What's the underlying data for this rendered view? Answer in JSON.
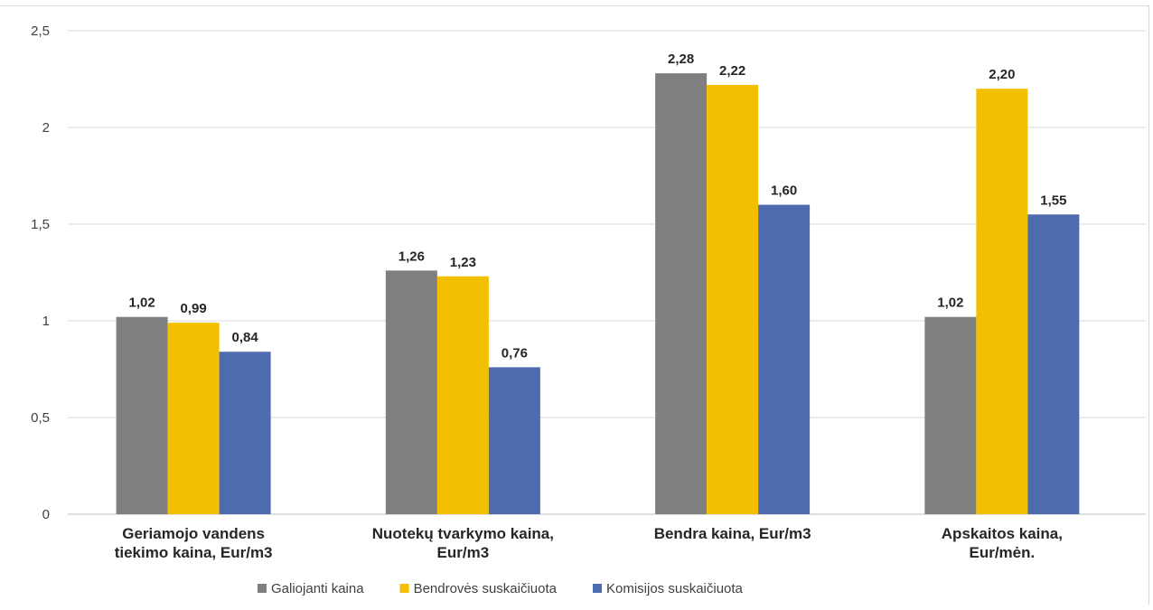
{
  "chart_data": {
    "type": "bar",
    "title": "",
    "xlabel": "",
    "ylabel": "",
    "ylim": [
      0,
      2.5
    ],
    "yticks": [
      "0",
      "0,5",
      "1",
      "1,5",
      "2",
      "2,5"
    ],
    "grid": true,
    "legend_position": "bottom",
    "categories": [
      [
        "Geriamojo vandens",
        "tiekimo kaina, Eur/m3"
      ],
      [
        "Nuotekų tvarkymo kaina,",
        "Eur/m3"
      ],
      [
        "Bendra kaina, Eur/m3"
      ],
      [
        "Apskaitos kaina,",
        "Eur/mėn."
      ]
    ],
    "series": [
      {
        "name": "Galiojanti kaina",
        "color": "#7f7f7f",
        "values": [
          1.02,
          1.26,
          2.28,
          1.02
        ],
        "labels": [
          "1,02",
          "1,26",
          "2,28",
          "1,02"
        ]
      },
      {
        "name": "Bendrovės suskaičiuota",
        "color": "#f2c000",
        "values": [
          0.99,
          1.23,
          2.22,
          2.2
        ],
        "labels": [
          "0,99",
          "1,23",
          "2,22",
          "2,20"
        ]
      },
      {
        "name": "Komisijos suskaičiuota",
        "color": "#4f6bb0",
        "values": [
          0.84,
          0.76,
          1.6,
          1.55
        ],
        "labels": [
          "0,84",
          "0,76",
          "1,60",
          "1,55"
        ]
      }
    ]
  }
}
